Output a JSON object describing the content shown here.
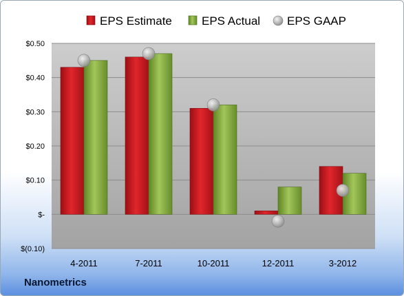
{
  "company_label": "Nanometrics",
  "chart_data": {
    "type": "bar",
    "categories": [
      "4-2011",
      "7-2011",
      "10-2011",
      "12-2011",
      "3-2012"
    ],
    "series": [
      {
        "name": "EPS Estimate",
        "kind": "bar",
        "color": "#c0161c",
        "values": [
          0.43,
          0.46,
          0.31,
          0.01,
          0.14
        ]
      },
      {
        "name": "EPS Actual",
        "kind": "bar",
        "color": "#7fa63c",
        "values": [
          0.45,
          0.47,
          0.32,
          0.08,
          0.12
        ]
      },
      {
        "name": "EPS GAAP",
        "kind": "marker",
        "color": "#b4b4b4",
        "values": [
          0.45,
          0.47,
          0.32,
          -0.02,
          0.07
        ]
      }
    ],
    "ylim": [
      -0.1,
      0.5
    ],
    "yticks": [
      0.5,
      0.4,
      0.3,
      0.2,
      0.1,
      0,
      -0.1
    ],
    "ytick_labels": [
      "$0.50",
      "$0.40",
      "$0.30",
      "$0.20",
      "$0.10",
      "$-",
      "$(0.10)"
    ],
    "grid": true,
    "legend_position": "top"
  }
}
